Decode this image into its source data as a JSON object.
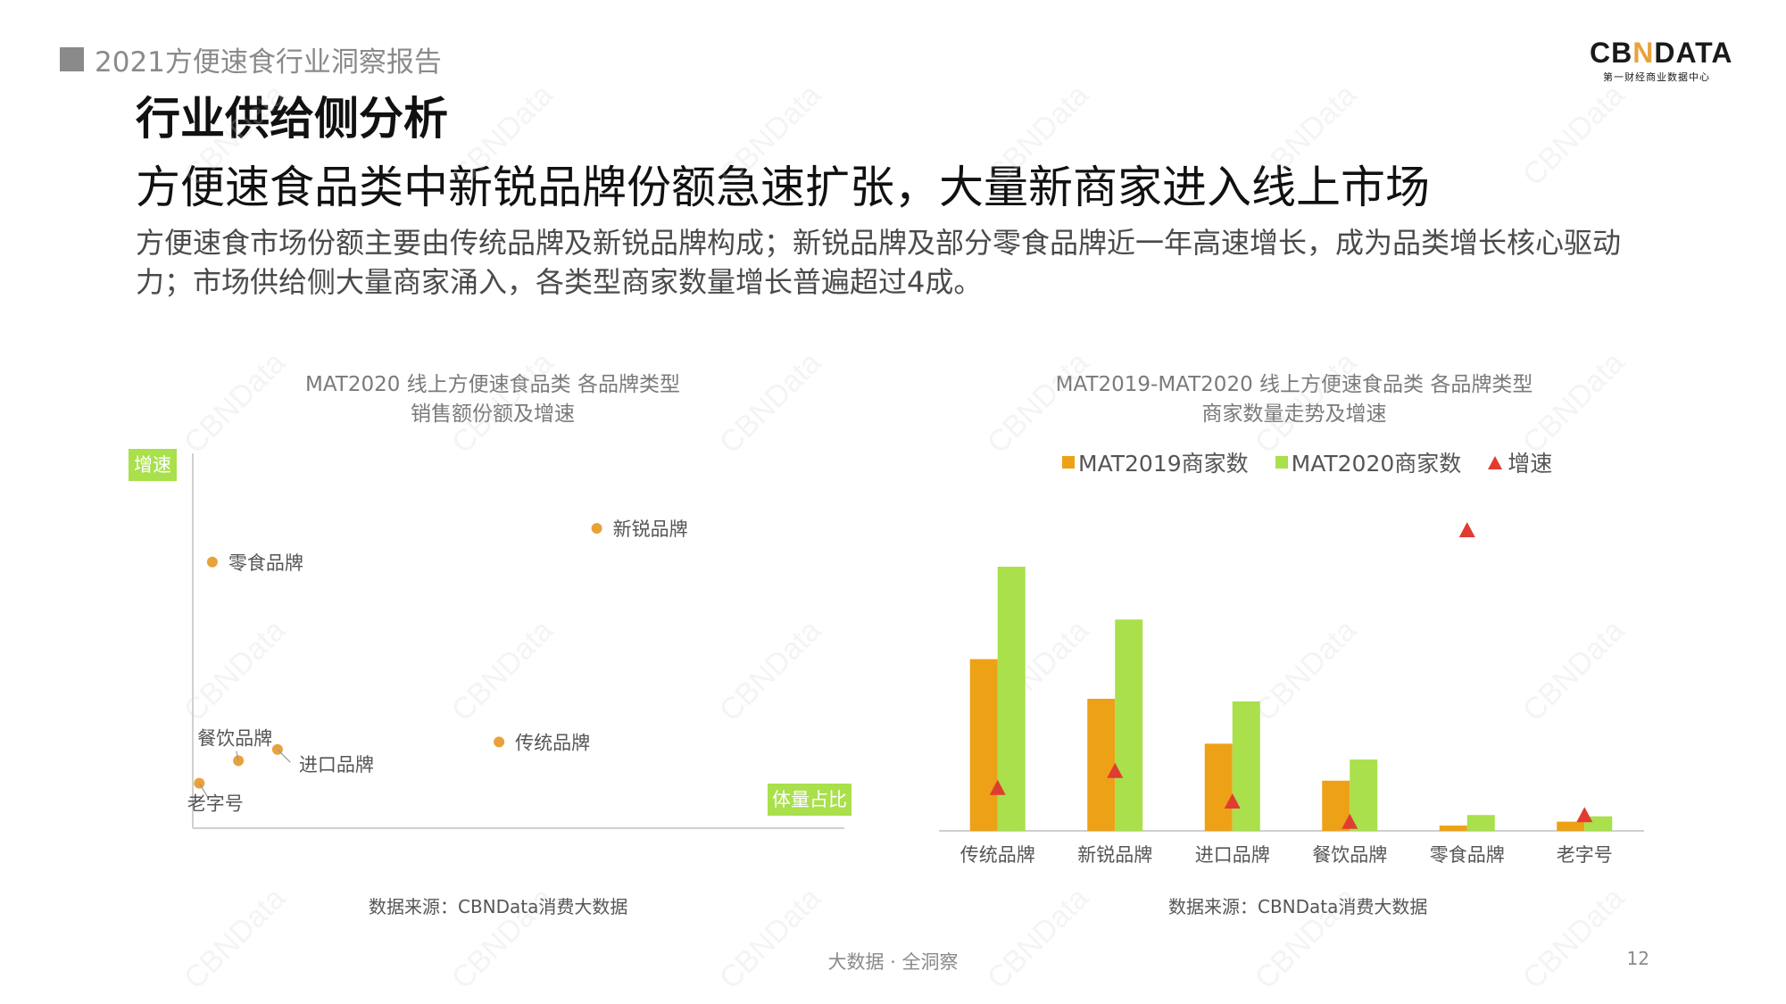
{
  "header": {
    "report_label": "2021方便速食行业洞察报告",
    "logo_text_left": "CB",
    "logo_text_mark": "N",
    "logo_text_right": "DATA",
    "logo_subtitle": "第一财经商业数据中心"
  },
  "section_title": "行业供给侧分析",
  "headline": "方便速食品类中新锐品牌份额急速扩张，大量新商家进入线上市场",
  "summary": "方便速食市场份额主要由传统品牌及新锐品牌构成；新锐品牌及部分零食品牌近一年高速增长，成为品类增长核心驱动力；市场供给侧大量商家涌入，各类型商家数量增长普遍超过4成。",
  "watermark_text": "CBNData",
  "footer": {
    "tagline": "大数据 · 全洞察",
    "page_number": "12"
  },
  "colors": {
    "orange": "#eda116",
    "green": "#a9e04b",
    "red": "#e03c31",
    "dot": "#e8a23b",
    "axis_tag_bg": "#a9e04b"
  },
  "chart_data": [
    {
      "type": "scatter",
      "title": "MAT2020 线上方便速食品类 各品牌类型",
      "subtitle": "销售额份额及增速",
      "xlabel": "体量占比",
      "ylabel": "增速",
      "points": [
        {
          "name": "新锐品牌",
          "x": 0.62,
          "y": 0.8
        },
        {
          "name": "零食品牌",
          "x": 0.03,
          "y": 0.71
        },
        {
          "name": "传统品牌",
          "x": 0.47,
          "y": 0.23
        },
        {
          "name": "餐饮品牌",
          "x": 0.07,
          "y": 0.18
        },
        {
          "name": "进口品牌",
          "x": 0.13,
          "y": 0.21
        },
        {
          "name": "老字号",
          "x": 0.01,
          "y": 0.12
        }
      ],
      "source": "数据来源：CBNData消费大数据"
    },
    {
      "type": "bar",
      "title": "MAT2019-MAT2020 线上方便速食品类 各品牌类型",
      "subtitle": "商家数量走势及增速",
      "categories": [
        "传统品牌",
        "新锐品牌",
        "进口品牌",
        "餐饮品牌",
        "零食品牌",
        "老字号"
      ],
      "series": [
        {
          "name": "MAT2019商家数",
          "values": [
            0.65,
            0.5,
            0.33,
            0.19,
            0.02,
            0.035
          ]
        },
        {
          "name": "MAT2020商家数",
          "values": [
            1.0,
            0.8,
            0.49,
            0.27,
            0.06,
            0.055
          ]
        }
      ],
      "growth": {
        "name": "增速",
        "values": [
          0.34,
          0.39,
          0.3,
          0.24,
          1.1,
          0.26
        ]
      },
      "source": "数据来源：CBNData消费大数据"
    }
  ]
}
